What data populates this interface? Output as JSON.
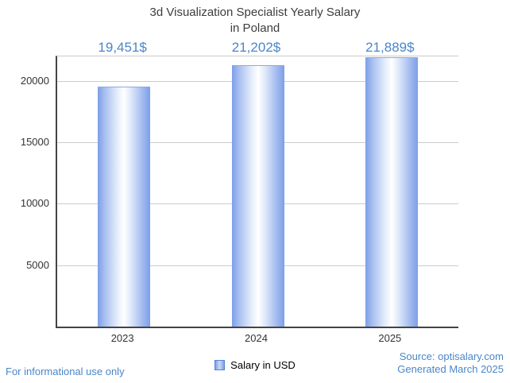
{
  "title": {
    "line1": "3d Visualization Specialist Yearly Salary",
    "line2": "in Poland"
  },
  "chart_data": {
    "type": "bar",
    "title": "3d Visualization Specialist Yearly Salary in Poland",
    "categories": [
      "2023",
      "2024",
      "2025"
    ],
    "values": [
      19451,
      21202,
      21889
    ],
    "value_labels": [
      "19,451$",
      "21,202$",
      "21,889$"
    ],
    "xlabel": "",
    "ylabel": "",
    "ylim": [
      0,
      22000
    ],
    "yticks": [
      5000,
      10000,
      15000,
      20000
    ],
    "grid": true,
    "legend": [
      {
        "label": "Salary in USD",
        "color": "#7d9fe8"
      }
    ],
    "legend_position": "bottom",
    "bar_color": "#7d9fe8",
    "value_label_color": "#4a86c8"
  },
  "legend": {
    "salary_label": "Salary in USD"
  },
  "footer": {
    "left": "For informational use only",
    "source": "Source: optisalary.com",
    "generated": "Generated March 2025"
  },
  "colors": {
    "accent_blue": "#4a86c8",
    "bar_blue": "#7d9fe8",
    "grid": "#cccccc",
    "axis": "#444444",
    "title_text": "#3d3d3d"
  }
}
